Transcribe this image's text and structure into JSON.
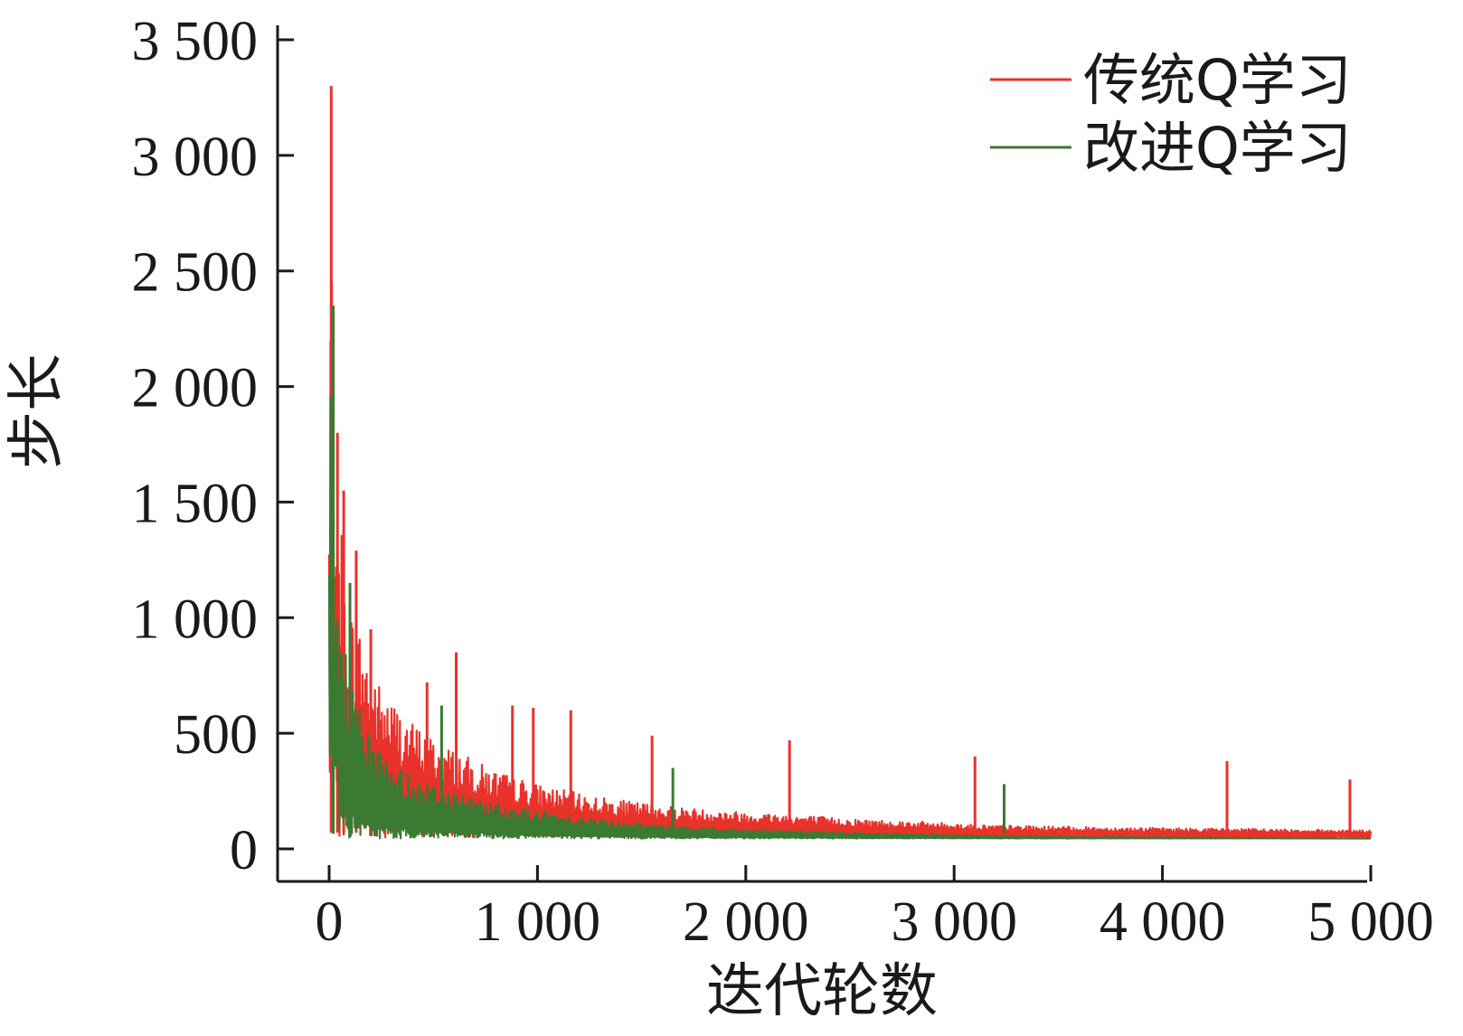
{
  "chart_data": {
    "type": "line",
    "title": "",
    "xlabel": "迭代轮数",
    "ylabel": "步长",
    "xlim": [
      0,
      5000
    ],
    "ylim": [
      0,
      3500
    ],
    "x_ticks": [
      0,
      1000,
      2000,
      3000,
      4000,
      5000
    ],
    "x_tick_labels": [
      "0",
      "1 000",
      "2 000",
      "3 000",
      "4 000",
      "5 000"
    ],
    "y_ticks": [
      0,
      500,
      1000,
      1500,
      2000,
      2500,
      3000,
      3500
    ],
    "y_tick_labels": [
      "0",
      "500",
      "1 000",
      "1 500",
      "2 000",
      "2 500",
      "3 000",
      "3 500"
    ],
    "grid": false,
    "legend_position": "top-right",
    "series": [
      {
        "name": "传统Q学习",
        "color": "#e8322a",
        "x": [
          0,
          10,
          20,
          30,
          50,
          80,
          100,
          150,
          200,
          250,
          300,
          400,
          500,
          600,
          700,
          800,
          900,
          1000,
          1200,
          1400,
          1600,
          1800,
          2000,
          2200,
          2500,
          2800,
          3000,
          3100,
          3300,
          3600,
          4000,
          4300,
          4500,
          4700,
          4900,
          5000
        ],
        "values": [
          1500,
          3300,
          1900,
          1800,
          1500,
          1200,
          1050,
          950,
          800,
          700,
          650,
          550,
          480,
          430,
          380,
          340,
          310,
          280,
          240,
          210,
          190,
          170,
          160,
          150,
          130,
          120,
          110,
          105,
          100,
          95,
          90,
          88,
          86,
          84,
          82,
          80
        ],
        "spikes": [
          {
            "x": 10,
            "y": 3300
          },
          {
            "x": 40,
            "y": 1800
          },
          {
            "x": 70,
            "y": 1550
          },
          {
            "x": 130,
            "y": 1290
          },
          {
            "x": 200,
            "y": 950
          },
          {
            "x": 470,
            "y": 720
          },
          {
            "x": 610,
            "y": 850
          },
          {
            "x": 880,
            "y": 620
          },
          {
            "x": 980,
            "y": 610
          },
          {
            "x": 1160,
            "y": 600
          },
          {
            "x": 1550,
            "y": 490
          },
          {
            "x": 2210,
            "y": 470
          },
          {
            "x": 3100,
            "y": 400
          },
          {
            "x": 4310,
            "y": 380
          },
          {
            "x": 4900,
            "y": 300
          }
        ]
      },
      {
        "name": "改进Q学习",
        "color": "#3a7a32",
        "x": [
          0,
          10,
          20,
          30,
          50,
          80,
          100,
          150,
          200,
          250,
          300,
          400,
          500,
          600,
          700,
          800,
          900,
          1000,
          1200,
          1400,
          1600,
          1800,
          2000,
          2200,
          2500,
          2800,
          3000,
          3300,
          3600,
          4000,
          4500,
          5000
        ],
        "values": [
          1200,
          2350,
          1500,
          1200,
          1000,
          850,
          750,
          600,
          500,
          420,
          380,
          320,
          280,
          250,
          220,
          200,
          180,
          165,
          140,
          120,
          105,
          95,
          85,
          80,
          70,
          65,
          60,
          55,
          52,
          50,
          48,
          45
        ],
        "spikes": [
          {
            "x": 20,
            "y": 2350
          },
          {
            "x": 100,
            "y": 1150
          },
          {
            "x": 540,
            "y": 620
          },
          {
            "x": 1650,
            "y": 350
          },
          {
            "x": 3240,
            "y": 280
          }
        ]
      }
    ]
  }
}
